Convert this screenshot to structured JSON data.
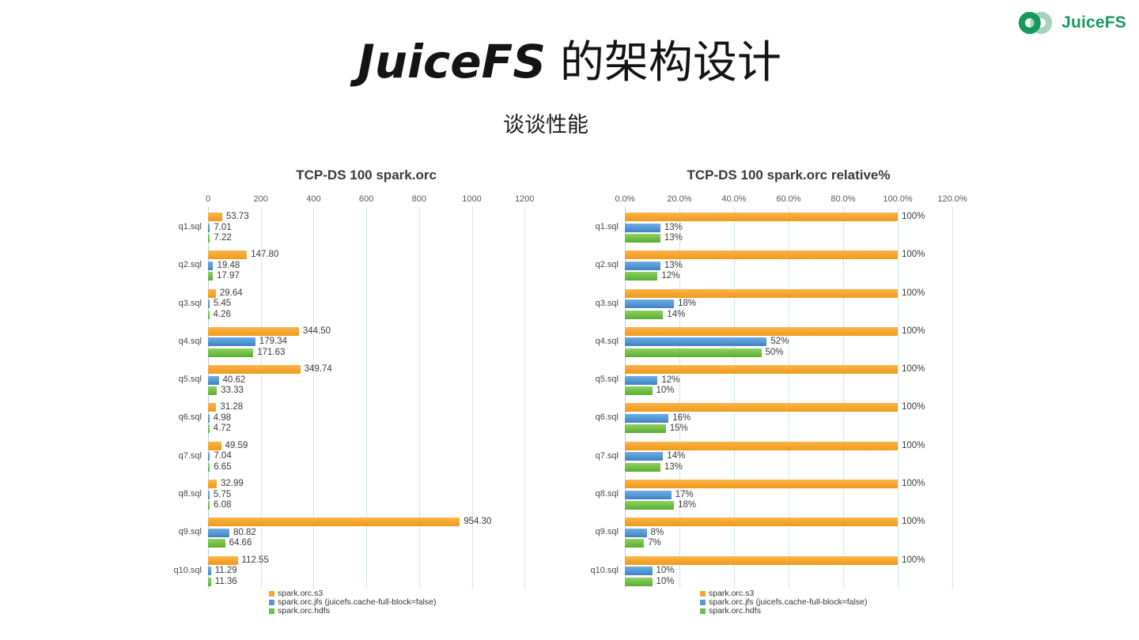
{
  "logo": {
    "text": "JuiceFS",
    "dark_green": "#12995d",
    "light_green": "#a5d2bb"
  },
  "slide": {
    "title_en": "JuiceFS",
    "title_zh": " 的架构设计",
    "subtitle": "谈谈性能"
  },
  "colors": {
    "grid": "#cfe6f2",
    "axis": "#b7cfdb"
  },
  "chart_data": [
    {
      "type": "bar",
      "orientation": "horizontal",
      "title": "TCP-DS 100 spark.orc",
      "categories": [
        "q1.sql",
        "q2.sql",
        "q3.sql",
        "q4.sql",
        "q5.sql",
        "q6.sql",
        "q7.sql",
        "q8.sql",
        "q9.sql",
        "q10.sql"
      ],
      "x_ticks": [
        "0",
        "200",
        "400",
        "600",
        "800",
        "1000",
        "1200"
      ],
      "x_max": 1200,
      "grid": true,
      "legend_position": "bottom",
      "series": [
        {
          "name": "spark.orc.s3",
          "color": "#f6a52e",
          "color_light": "#fbb44e",
          "color_dark": "#ef9a1b",
          "values": [
            53.73,
            147.8,
            29.64,
            344.5,
            349.74,
            31.28,
            49.59,
            32.99,
            954.3,
            112.55
          ],
          "labels": [
            "53.73",
            "147.80",
            "29.64",
            "344.50",
            "349.74",
            "31.28",
            "49.59",
            "32.99",
            "954.30",
            "112.55"
          ]
        },
        {
          "name": "spark.orc.jfs (juicefs.cache-full-block=false)",
          "color": "#5598d4",
          "color_light": "#6eace2",
          "color_dark": "#3f80c3",
          "values": [
            7.01,
            19.48,
            5.45,
            179.34,
            40.62,
            4.98,
            7.04,
            5.75,
            80.82,
            11.29
          ],
          "labels": [
            "7.01",
            "19.48",
            "5.45",
            "179.34",
            "40.62",
            "4.98",
            "7.04",
            "5.75",
            "80.82",
            "11.29"
          ]
        },
        {
          "name": "spark.orc.hdfs",
          "color": "#72be45",
          "color_light": "#90d161",
          "color_dark": "#58ac33",
          "values": [
            7.22,
            17.97,
            4.26,
            171.63,
            33.33,
            4.72,
            6.65,
            6.08,
            64.66,
            11.36
          ],
          "labels": [
            "7.22",
            "17.97",
            "4.26",
            "171.63",
            "33.33",
            "4.72",
            "6.65",
            "6.08",
            "64.66",
            "11.36"
          ]
        }
      ]
    },
    {
      "type": "bar",
      "orientation": "horizontal",
      "title": "TCP-DS 100 spark.orc relative%",
      "categories": [
        "q1.sql",
        "q2.sql",
        "q3.sql",
        "q4.sql",
        "q5.sql",
        "q6.sql",
        "q7.sql",
        "q8.sql",
        "q9.sql",
        "q10.sql"
      ],
      "x_ticks": [
        "0.0%",
        "20.0%",
        "40.0%",
        "60.0%",
        "80.0%",
        "100.0%",
        "120.0%"
      ],
      "x_max": 120,
      "grid": true,
      "legend_position": "bottom",
      "series": [
        {
          "name": "spark.orc.s3",
          "color": "#f6a52e",
          "color_light": "#fbb44e",
          "color_dark": "#ef9a1b",
          "values": [
            100,
            100,
            100,
            100,
            100,
            100,
            100,
            100,
            100,
            100
          ],
          "labels": [
            "100%",
            "100%",
            "100%",
            "100%",
            "100%",
            "100%",
            "100%",
            "100%",
            "100%",
            "100%"
          ]
        },
        {
          "name": "spark.orc.jfs (juicefs.cache-full-block=false)",
          "color": "#5598d4",
          "color_light": "#6eace2",
          "color_dark": "#3f80c3",
          "values": [
            13,
            13,
            18,
            52,
            12,
            16,
            14,
            17,
            8,
            10
          ],
          "labels": [
            "13%",
            "13%",
            "18%",
            "52%",
            "12%",
            "16%",
            "14%",
            "17%",
            "8%",
            "10%"
          ]
        },
        {
          "name": "spark.orc.hdfs",
          "color": "#72be45",
          "color_light": "#90d161",
          "color_dark": "#58ac33",
          "values": [
            13,
            12,
            14,
            50,
            10,
            15,
            13,
            18,
            7,
            10
          ],
          "labels": [
            "13%",
            "12%",
            "14%",
            "50%",
            "10%",
            "15%",
            "13%",
            "18%",
            "7%",
            "10%"
          ]
        }
      ]
    }
  ]
}
